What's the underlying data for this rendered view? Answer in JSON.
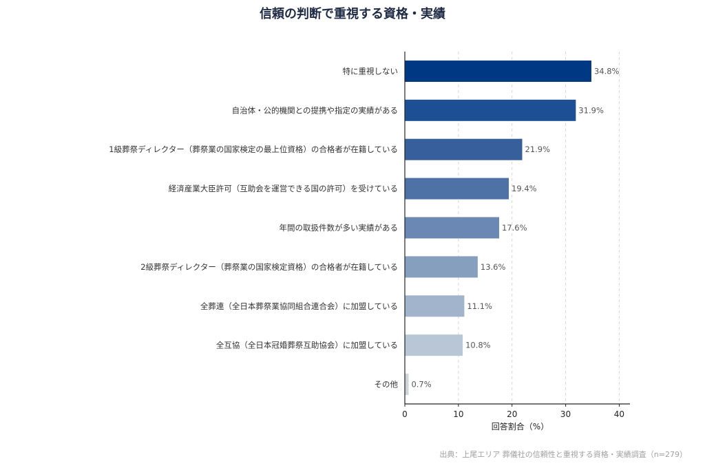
{
  "chart_data": {
    "type": "bar",
    "orientation": "horizontal",
    "title": "信頼の判断で重視する資格・実績",
    "xlabel": "回答割合（%）",
    "ylabel": "",
    "xlim": [
      0,
      42
    ],
    "xticks": [
      0,
      10,
      20,
      30,
      40
    ],
    "grid": "vertical-dashed",
    "value_suffix": "%",
    "categories": [
      "特に重視しない",
      "自治体・公的機関との提携や指定の実績がある",
      "1級葬祭ディレクター（葬祭業の国家検定の最上位資格）の合格者が在籍している",
      "経済産業大臣許可（互助会を運営できる国の許可）を受けている",
      "年間の取扱件数が多い実績がある",
      "2級葬祭ディレクター（葬祭業の国家検定資格）の合格者が在籍している",
      "全葬連（全日本葬祭業協同組合連合会）に加盟している",
      "全互協（全日本冠婚葬祭互助協会）に加盟している",
      "その他"
    ],
    "values": [
      34.8,
      31.9,
      21.9,
      19.4,
      17.6,
      13.6,
      11.1,
      10.8,
      0.7
    ],
    "colors": [
      "#003883",
      "#1c4f94",
      "#365f9c",
      "#4e71a6",
      "#6a88b3",
      "#879fbf",
      "#a2b4cb",
      "#b9c6d5",
      "#cfd4db"
    ]
  },
  "source_note": "出典：上尾エリア 葬儀社の信頼性と重視する資格・実績調査（n=279）"
}
